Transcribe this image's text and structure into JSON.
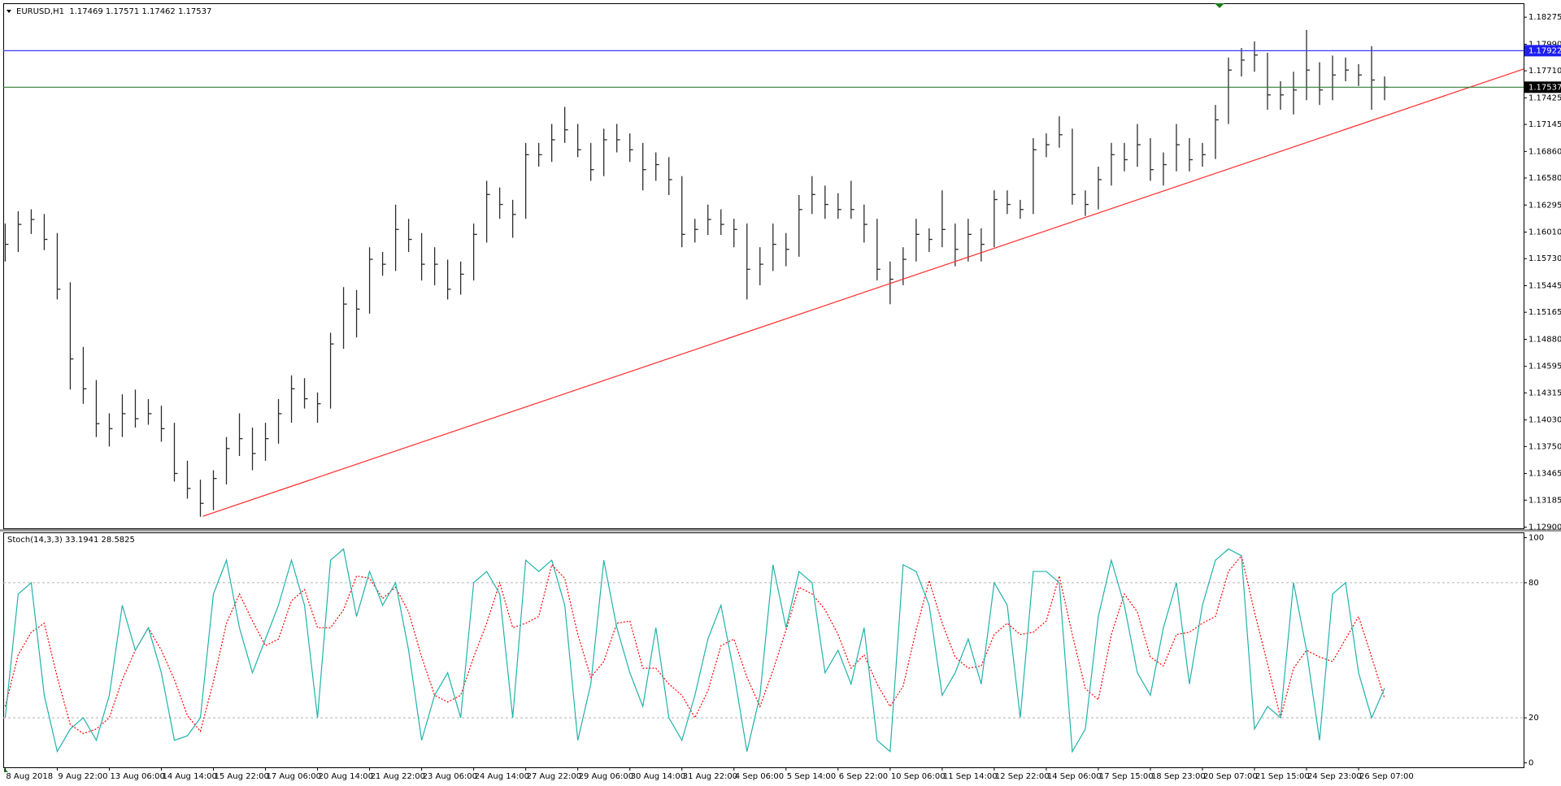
{
  "chart_data": [
    {
      "type": "ohlc",
      "title": "EURUSD,H1  1.17469 1.17571 1.17462 1.17537",
      "color": "#2b2b2b",
      "close": [
        1.15881,
        1.16091,
        1.16143,
        1.15933,
        1.15408,
        1.14673,
        1.14358,
        1.13991,
        1.13938,
        1.14096,
        1.14043,
        1.14096,
        1.13938,
        1.13466,
        1.13308,
        1.13151,
        1.13413,
        1.13728,
        1.13833,
        1.13676,
        1.13833,
        1.14096,
        1.14358,
        1.14253,
        1.14201,
        1.14831,
        1.15251,
        1.15198,
        1.15723,
        1.15671,
        1.16038,
        1.15933,
        1.15671,
        1.15671,
        1.15408,
        1.15566,
        1.15986,
        1.16406,
        1.16301,
        1.16196,
        1.16826,
        1.16826,
        1.16983,
        1.17088,
        1.16878,
        1.16668,
        1.16983,
        1.16983,
        1.16878,
        1.16668,
        1.16721,
        1.16563,
        1.15986,
        1.16038,
        1.16143,
        1.16091,
        1.16038,
        1.15618,
        1.15671,
        1.15881,
        1.15828,
        1.16248,
        1.16406,
        1.16301,
        1.16248,
        1.16248,
        1.16091,
        1.15618,
        1.15513,
        1.15723,
        1.15986,
        1.15933,
        1.16038,
        1.15828,
        1.15986,
        1.15881,
        1.16353,
        1.16301,
        1.16248,
        1.16878,
        1.16931,
        1.17036,
        1.16406,
        1.16301,
        1.16563,
        1.16826,
        1.16773,
        1.16931,
        1.16668,
        1.16721,
        1.16931,
        1.16773,
        1.16826,
        1.17193,
        1.17718,
        1.17823,
        1.17876,
        1.17456,
        1.17456,
        1.17508,
        1.17718,
        1.17508,
        1.17666,
        1.17718,
        1.17666,
        1.17613,
        1.17537
      ],
      "high": [
        1.161,
        1.1623,
        1.1625,
        1.162,
        1.16,
        1.1548,
        1.148,
        1.1445,
        1.141,
        1.143,
        1.1435,
        1.1425,
        1.1418,
        1.14,
        1.136,
        1.134,
        1.135,
        1.1385,
        1.141,
        1.1395,
        1.14,
        1.1425,
        1.145,
        1.1447,
        1.1432,
        1.1495,
        1.1543,
        1.154,
        1.1585,
        1.158,
        1.163,
        1.1615,
        1.16,
        1.1585,
        1.1572,
        1.157,
        1.161,
        1.1655,
        1.1648,
        1.1635,
        1.1695,
        1.1695,
        1.1715,
        1.1733,
        1.1715,
        1.1695,
        1.171,
        1.1715,
        1.1705,
        1.1695,
        1.1685,
        1.168,
        1.166,
        1.1615,
        1.163,
        1.1625,
        1.1615,
        1.161,
        1.1585,
        1.161,
        1.16,
        1.164,
        1.166,
        1.165,
        1.1642,
        1.1655,
        1.163,
        1.1615,
        1.157,
        1.1585,
        1.1615,
        1.1605,
        1.1645,
        1.161,
        1.1615,
        1.1605,
        1.1645,
        1.1645,
        1.1635,
        1.17,
        1.1705,
        1.1723,
        1.171,
        1.1645,
        1.167,
        1.1695,
        1.1695,
        1.1715,
        1.17,
        1.1685,
        1.1715,
        1.17,
        1.1695,
        1.1735,
        1.1785,
        1.1795,
        1.1802,
        1.179,
        1.176,
        1.177,
        1.1814,
        1.178,
        1.1787,
        1.1785,
        1.1778,
        1.1797,
        1.1765
      ],
      "low": [
        1.157,
        1.158,
        1.1599,
        1.1582,
        1.153,
        1.1435,
        1.142,
        1.1385,
        1.1375,
        1.1385,
        1.1395,
        1.1398,
        1.138,
        1.1338,
        1.132,
        1.1301,
        1.1308,
        1.1335,
        1.1365,
        1.135,
        1.136,
        1.1378,
        1.14,
        1.1415,
        1.14,
        1.1415,
        1.1478,
        1.149,
        1.1515,
        1.1555,
        1.156,
        1.158,
        1.155,
        1.1545,
        1.153,
        1.1535,
        1.155,
        1.159,
        1.1615,
        1.1595,
        1.1615,
        1.167,
        1.1675,
        1.1695,
        1.168,
        1.1655,
        1.166,
        1.1685,
        1.1675,
        1.1645,
        1.1655,
        1.164,
        1.1585,
        1.159,
        1.1598,
        1.1598,
        1.1585,
        1.153,
        1.1545,
        1.156,
        1.1565,
        1.1575,
        1.162,
        1.1615,
        1.1615,
        1.1615,
        1.159,
        1.155,
        1.1525,
        1.1545,
        1.157,
        1.158,
        1.1585,
        1.1565,
        1.157,
        1.157,
        1.1585,
        1.162,
        1.1615,
        1.162,
        1.168,
        1.169,
        1.163,
        1.1618,
        1.1625,
        1.165,
        1.1665,
        1.167,
        1.1655,
        1.165,
        1.1665,
        1.1665,
        1.167,
        1.1678,
        1.1715,
        1.1765,
        1.177,
        1.173,
        1.173,
        1.1725,
        1.174,
        1.1735,
        1.174,
        1.176,
        1.1755,
        1.173,
        1.174
      ],
      "xlim": [
        -0.15,
        116.68
      ],
      "xticks": [
        {
          "value": 0,
          "label": "8 Aug 2018"
        },
        {
          "value": 4,
          "label": "9 Aug 22:00"
        },
        {
          "value": 8,
          "label": "13 Aug 06:00"
        },
        {
          "value": 12,
          "label": "14 Aug 14:00"
        },
        {
          "value": 16,
          "label": "15 Aug 22:00"
        },
        {
          "value": 20,
          "label": "17 Aug 06:00"
        },
        {
          "value": 24,
          "label": "20 Aug 14:00"
        },
        {
          "value": 28,
          "label": "21 Aug 22:00"
        },
        {
          "value": 32,
          "label": "23 Aug 06:00"
        },
        {
          "value": 36,
          "label": "24 Aug 14:00"
        },
        {
          "value": 40,
          "label": "27 Aug 22:00"
        },
        {
          "value": 44,
          "label": "29 Aug 06:00"
        },
        {
          "value": 48,
          "label": "30 Aug 14:00"
        },
        {
          "value": 52,
          "label": "31 Aug 22:00"
        },
        {
          "value": 56,
          "label": "4 Sep 06:00"
        },
        {
          "value": 60,
          "label": "5 Sep 14:00"
        },
        {
          "value": 64,
          "label": "6 Sep 22:00"
        },
        {
          "value": 68,
          "label": "10 Sep 06:00"
        },
        {
          "value": 72,
          "label": "11 Sep 14:00"
        },
        {
          "value": 76,
          "label": "12 Sep 22:00"
        },
        {
          "value": 80,
          "label": "14 Sep 06:00"
        },
        {
          "value": 84,
          "label": "17 Sep 15:00"
        },
        {
          "value": 88,
          "label": "18 Sep 23:00"
        },
        {
          "value": 92,
          "label": "20 Sep 07:00"
        },
        {
          "value": 96,
          "label": "21 Sep 15:00"
        },
        {
          "value": 100,
          "label": "24 Sep 23:00"
        },
        {
          "value": 104,
          "label": "26 Sep 07:00"
        }
      ],
      "ylim": [
        1.12879,
        1.18422
      ],
      "yticks": [
        1.18275,
        {
          "value": 1.1799,
          "label": "1.17990"
        },
        {
          "value": 1.1771,
          "label": "1.17710"
        },
        1.17425,
        1.17145,
        {
          "value": 1.1686,
          "label": "1.16860"
        },
        {
          "value": 1.1658,
          "label": "1.16580"
        },
        1.16295,
        {
          "value": 1.1601,
          "label": "1.16010"
        },
        {
          "value": 1.1573,
          "label": "1.15730"
        },
        1.15445,
        1.15165,
        {
          "value": 1.1488,
          "label": "1.14880"
        },
        1.14595,
        1.14315,
        {
          "value": 1.1403,
          "label": "1.14030"
        },
        {
          "value": 1.1375,
          "label": "1.13750"
        },
        1.13465,
        1.13185,
        {
          "value": 1.129,
          "label": "1.12900"
        }
      ],
      "hlines": [
        {
          "value": 1.17922,
          "color": "#3a3aff",
          "label_color": "#1f1ff0"
        },
        {
          "value": 1.17537,
          "color": "#2e7d32",
          "label_color": "#000000"
        }
      ],
      "trendline": {
        "x": [
          15.2,
          116.68
        ],
        "y": [
          1.13015,
          1.17729
        ],
        "color": "#ff2a2a"
      }
    },
    {
      "type": "line",
      "title": "Stoch(14,3,3) 33.1941 28.5825",
      "series": [
        {
          "color": "#20b2aa",
          "dashed": false,
          "values": [
            20,
            75,
            80,
            30,
            5,
            15,
            20,
            10,
            30,
            70,
            50,
            60,
            40,
            10,
            12,
            20,
            75,
            90,
            60,
            40,
            55,
            70,
            90,
            70,
            20,
            90,
            95,
            65,
            85,
            70,
            80,
            50,
            10,
            30,
            40,
            20,
            80,
            85,
            75,
            20,
            90,
            85,
            90,
            70,
            10,
            35,
            90,
            60,
            40,
            25,
            60,
            20,
            10,
            30,
            55,
            70,
            40,
            5,
            30,
            88,
            60,
            85,
            80,
            40,
            50,
            35,
            60,
            10,
            5,
            88,
            85,
            70,
            30,
            40,
            55,
            35,
            80,
            70,
            20,
            85,
            85,
            80,
            5,
            15,
            65,
            90,
            70,
            40,
            30,
            60,
            80,
            35,
            70,
            90,
            95,
            92,
            15,
            25,
            20,
            80,
            50,
            10,
            75,
            80,
            40,
            20,
            33.1941
          ]
        },
        {
          "color": "#ff0000",
          "dashed": true,
          "values": [
            25,
            48,
            58,
            62,
            38,
            17,
            13,
            15,
            20,
            37,
            50,
            60,
            50,
            37,
            21,
            14,
            36,
            62,
            75,
            63,
            52,
            55,
            72,
            77,
            60,
            60,
            68,
            83,
            82,
            73,
            78,
            67,
            47,
            30,
            27,
            30,
            47,
            62,
            80,
            60,
            62,
            65,
            88,
            82,
            57,
            38,
            45,
            62,
            63,
            42,
            42,
            35,
            30,
            20,
            32,
            52,
            55,
            38,
            25,
            41,
            59,
            78,
            75,
            68,
            57,
            42,
            48,
            35,
            25,
            34,
            59,
            81,
            62,
            47,
            42,
            43,
            57,
            62,
            57,
            58,
            63,
            83,
            57,
            33,
            28,
            57,
            75,
            67,
            47,
            43,
            57,
            58,
            62,
            65,
            85,
            92,
            67,
            44,
            20,
            42,
            50,
            47,
            45,
            55,
            65,
            47,
            28.5825
          ]
        }
      ],
      "ylim": [
        -2,
        102
      ],
      "yticks": [
        100,
        80,
        20,
        0
      ],
      "levels": [
        20,
        80
      ]
    }
  ]
}
